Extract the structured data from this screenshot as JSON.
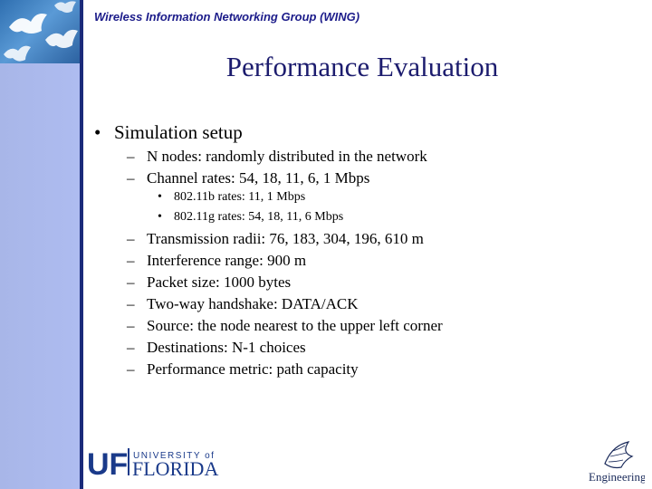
{
  "header": {
    "group_name": "Wireless Information Networking Group (WING)"
  },
  "slide": {
    "title": "Performance Evaluation",
    "bullet": "Simulation setup",
    "sub_items_a": [
      "N nodes: randomly distributed in the network",
      "Channel rates: 54, 18, 11, 6, 1 Mbps"
    ],
    "sub_sub_items": [
      "802.11b rates: 11, 1 Mbps",
      "802.11g rates: 54, 18, 11, 6 Mbps"
    ],
    "sub_items_b": [
      "Transmission radii: 76, 183, 304, 196, 610 m",
      "Interference range: 900 m",
      "Packet size: 1000 bytes",
      "Two-way handshake: DATA/ACK",
      "Source: the node nearest to the upper left corner",
      "Destinations: N-1 choices",
      "Performance metric: path capacity"
    ]
  },
  "bullets": {
    "level1": "•",
    "level2": "–",
    "level3": "•"
  },
  "footer": {
    "uf_letters": "UF",
    "university_of": "UNIVERSITY of",
    "florida": "FLORIDA",
    "engineering": "Engineering"
  },
  "colors": {
    "title": "#1c1c6e",
    "header": "#1c1c8a",
    "sidebar": "#aebcf0",
    "uf_blue": "#1a3a8a",
    "uf_orange": "#e8741a"
  }
}
